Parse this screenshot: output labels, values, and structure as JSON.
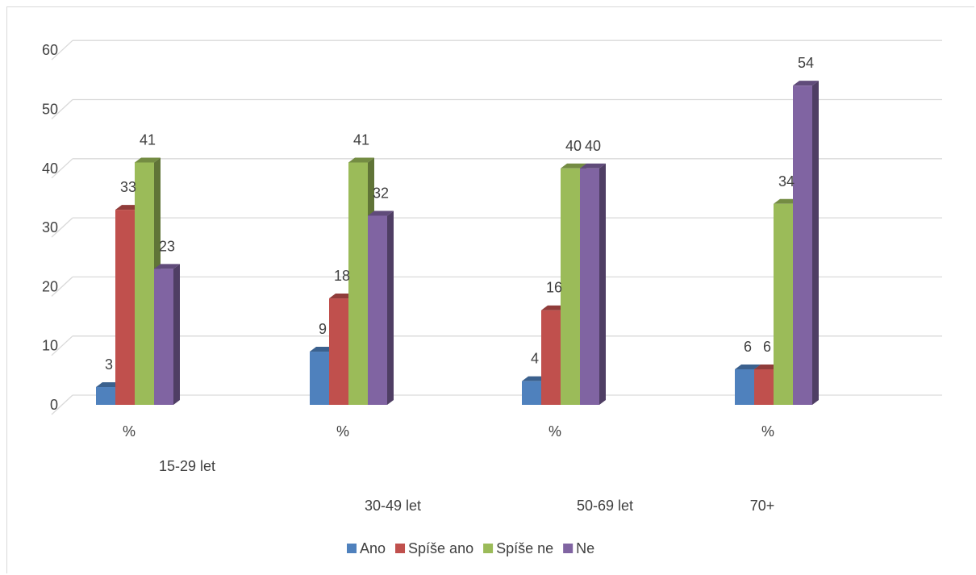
{
  "chart_data": {
    "type": "bar",
    "title": "",
    "xlabel": "",
    "ylabel": "",
    "ylim": [
      0,
      60
    ],
    "yticks": [
      0,
      10,
      20,
      30,
      40,
      50,
      60
    ],
    "grid": true,
    "legend_position": "bottom",
    "categories": [
      "%",
      "%",
      "%",
      "%"
    ],
    "group_labels": [
      "15-29 let",
      "30-49 let",
      "50-69 let",
      "70+"
    ],
    "series": [
      {
        "name": "Ano",
        "color": "#4f81bd",
        "values": [
          3,
          9,
          4,
          6
        ]
      },
      {
        "name": "Spíše ano",
        "color": "#c0504d",
        "values": [
          33,
          18,
          16,
          6
        ]
      },
      {
        "name": "Spíše ne",
        "color": "#9bbb59",
        "values": [
          41,
          41,
          40,
          34
        ]
      },
      {
        "name": "Ne",
        "color": "#8064a2",
        "values": [
          23,
          32,
          40,
          54
        ]
      }
    ]
  }
}
